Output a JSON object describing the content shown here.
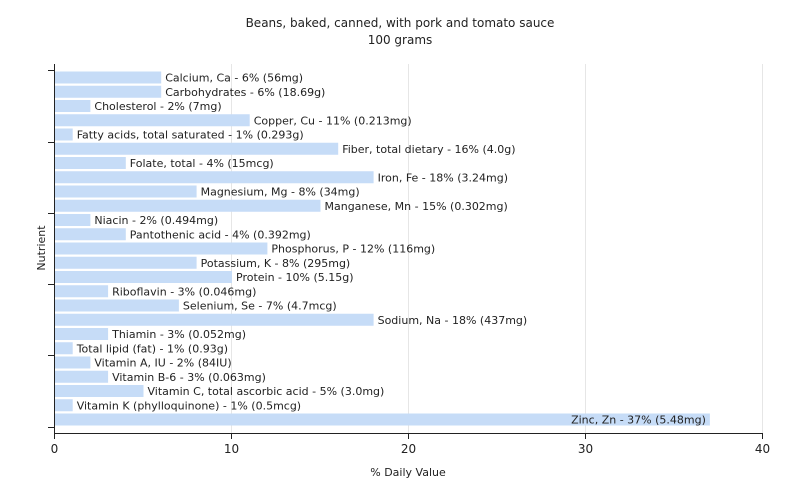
{
  "chart_data": {
    "type": "bar",
    "orientation": "horizontal",
    "title": "Beans, baked, canned, with pork and tomato sauce",
    "subtitle": "100 grams",
    "xlabel": "% Daily Value",
    "ylabel": "Nutrient",
    "xlim": [
      0,
      40
    ],
    "xticks": [
      0,
      10,
      20,
      30,
      40
    ],
    "grid": true,
    "bar_color": "#c6dcf7",
    "categories": [
      "Calcium, Ca",
      "Carbohydrates",
      "Cholesterol",
      "Copper, Cu",
      "Fatty acids, total saturated",
      "Fiber, total dietary",
      "Folate, total",
      "Iron, Fe",
      "Magnesium, Mg",
      "Manganese, Mn",
      "Niacin",
      "Pantothenic acid",
      "Phosphorus, P",
      "Potassium, K",
      "Protein",
      "Riboflavin",
      "Selenium, Se",
      "Sodium, Na",
      "Thiamin",
      "Total lipid (fat)",
      "Vitamin A, IU",
      "Vitamin B-6",
      "Vitamin C, total ascorbic acid",
      "Vitamin K (phylloquinone)",
      "Zinc, Zn"
    ],
    "values": [
      6,
      6,
      2,
      11,
      1,
      16,
      4,
      18,
      8,
      15,
      2,
      4,
      12,
      8,
      10,
      3,
      7,
      18,
      3,
      1,
      2,
      3,
      5,
      1,
      37
    ],
    "labels": [
      "Calcium, Ca - 6% (56mg)",
      "Carbohydrates - 6% (18.69g)",
      "Cholesterol - 2% (7mg)",
      "Copper, Cu - 11% (0.213mg)",
      "Fatty acids, total saturated - 1% (0.293g)",
      "Fiber, total dietary - 16% (4.0g)",
      "Folate, total - 4% (15mcg)",
      "Iron, Fe - 18% (3.24mg)",
      "Magnesium, Mg - 8% (34mg)",
      "Manganese, Mn - 15% (0.302mg)",
      "Niacin - 2% (0.494mg)",
      "Pantothenic acid - 4% (0.392mg)",
      "Phosphorus, P - 12% (116mg)",
      "Potassium, K - 8% (295mg)",
      "Protein - 10% (5.15g)",
      "Riboflavin - 3% (0.046mg)",
      "Selenium, Se - 7% (4.7mcg)",
      "Sodium, Na - 18% (437mg)",
      "Thiamin - 3% (0.052mg)",
      "Total lipid (fat) - 1% (0.93g)",
      "Vitamin A, IU - 2% (84IU)",
      "Vitamin B-6 - 3% (0.063mg)",
      "Vitamin C, total ascorbic acid - 5% (3.0mg)",
      "Vitamin K (phylloquinone) - 1% (0.5mcg)",
      "Zinc, Zn - 37% (5.48mg)"
    ]
  }
}
